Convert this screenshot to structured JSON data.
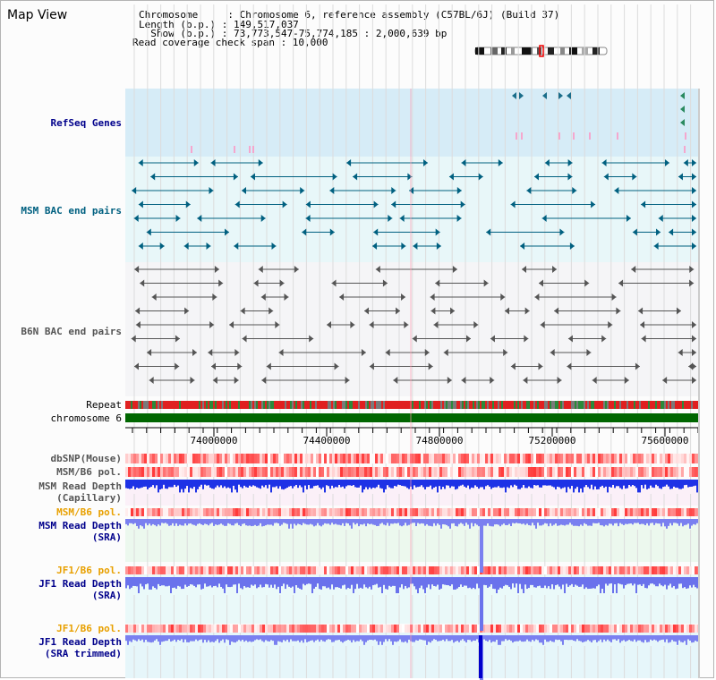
{
  "view": {
    "title": "Map View"
  },
  "info": {
    "chromosome": "Chromosome     : Chromosome 6, reference assembly (C57BL/6J) (Build 37)",
    "length": "Length (b.p.) : 149,517,037",
    "show": "  Show (b.p.) : 73,773,547-75,774,185 : 2,000,639 bp",
    "coverage": "Read coverage check span : 10,000"
  },
  "tracks": {
    "refseq": "RefSeq Genes",
    "msm_bac": "MSM BAC end pairs",
    "b6n_bac": "B6N BAC end pairs",
    "repeat": "Repeat",
    "chromosome": "chromosome 6",
    "dbsnp": "dbSNP(Mouse)",
    "msm_pol": "MSM/B6 pol.",
    "msm_depth_cap_1": "MSM Read Depth",
    "msm_depth_cap_2": "(Capillary)",
    "msm_pol_2": "MSM/B6 pol.",
    "msm_depth_sra_1": "MSM Read Depth",
    "msm_depth_sra_2": "(SRA)",
    "jf1_pol": "JF1/B6 pol.",
    "jf1_depth_sra_1": "JF1 Read Depth",
    "jf1_depth_sra_2": "(SRA)",
    "jf1_pol_2": "JF1/B6 pol.",
    "jf1_depth_trim_1": "JF1 Read Depth",
    "jf1_depth_trim_2": "(SRA trimmed)"
  },
  "axis": {
    "ticks": [
      "74000000",
      "74400000",
      "74800000",
      "75200000",
      "75600000"
    ]
  },
  "colors": {
    "refseq": "#00008b",
    "msm_bac": "#006080",
    "b6n_bac": "#555555",
    "orange": "#e8a000",
    "blue": "#0000b4"
  }
}
